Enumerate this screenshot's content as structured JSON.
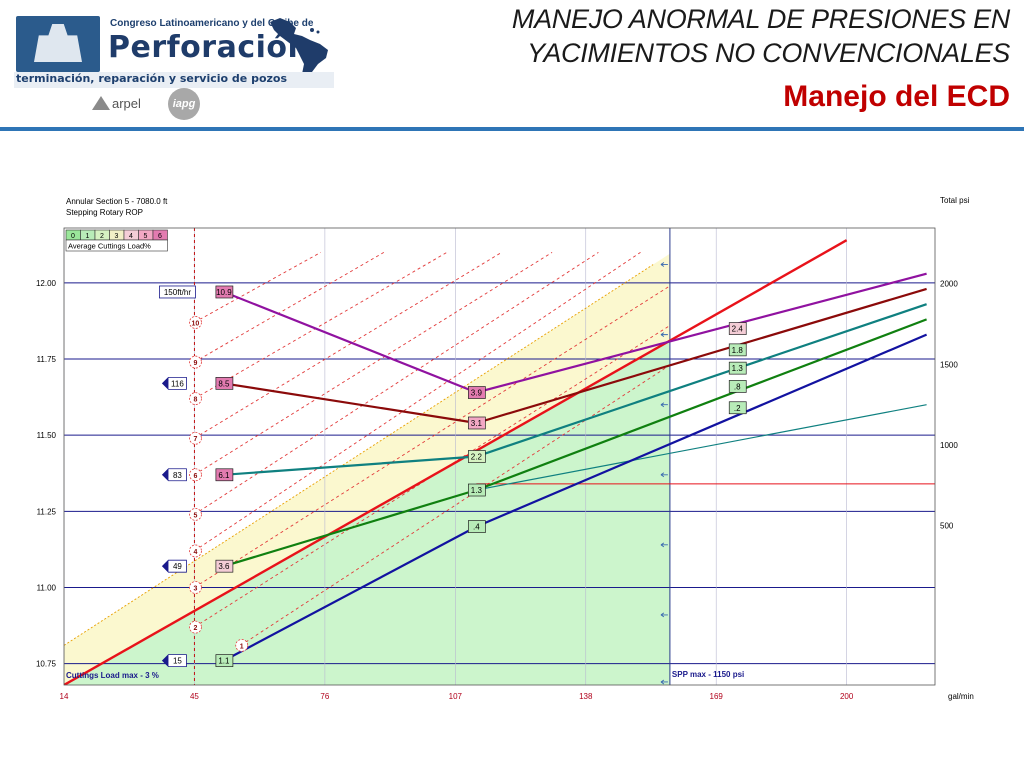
{
  "header": {
    "logo_congreso": "Congreso Latinoamericano y del Caribe de",
    "logo_perforacion": "Perforación",
    "logo_tagline": "terminación, reparación y servicio de pozos",
    "logo_arpel": "arpel",
    "logo_iapg": "iapg",
    "title_line1": "MANEJO ANORMAL DE PRESIONES EN",
    "title_line2": "YACIMIENTOS NO CONVENCIONALES",
    "subtitle": "Manejo del ECD"
  },
  "colors": {
    "brand_blue": "#2e75b6",
    "subtitle_red": "#c00000",
    "grid_navy": "#1a1a8c",
    "safe_zone": "#ccf5cc",
    "warn_zone": "#fbf8cf"
  },
  "chart_data": {
    "type": "line",
    "info_line1": "Annular Section 5 - 7080.0 ft",
    "info_line2": "Stepping Rotary ROP",
    "legend_boxes": [
      "0",
      "1",
      "2",
      "3",
      "4",
      "5",
      "6"
    ],
    "legend_box_colors": [
      "#9ae79a",
      "#b8ecb8",
      "#d6f2c2",
      "#f2efc6",
      "#f4cdd6",
      "#f2a8c4",
      "#e37bb0"
    ],
    "legend_title": "Average Cuttings Load%",
    "xlabel": "gal/min",
    "y2label": "Total psi",
    "x_ticks": [
      "14",
      "45",
      "76",
      "107",
      "138",
      "169",
      "200"
    ],
    "xlim": [
      14,
      221
    ],
    "y_ticks": [
      "12.00",
      "11.75",
      "11.50",
      "11.25",
      "11.00",
      "10.75"
    ],
    "ylim": [
      10.68,
      12.18
    ],
    "y2_ticks": [
      "2000",
      "1500",
      "1000",
      "500"
    ],
    "y2lim": [
      -487,
      2345
    ],
    "spp_max_label": "SPP max - 1150 psi",
    "cuttings_max_label": "Cuttings Load max - 3 %",
    "spp_limit_x": 158,
    "cuttings_limit_x": 45,
    "ecd_series": [
      {
        "color": "#9012a0",
        "points": [
          [
            52,
            11.97
          ],
          [
            112,
            11.64
          ],
          [
            219,
            12.03
          ]
        ],
        "labels": [
          {
            "x": 52,
            "y": 11.97,
            "text": "10.9",
            "fill": "#e37bb0"
          },
          {
            "x": 112,
            "y": 11.64,
            "text": "3.9",
            "fill": "#e37bb0"
          },
          {
            "x": 174,
            "y": 11.85,
            "text": "2.4",
            "fill": "#f4cdd6"
          }
        ]
      },
      {
        "color": "#8b0a0a",
        "points": [
          [
            52,
            11.67
          ],
          [
            112,
            11.54
          ],
          [
            219,
            11.98
          ]
        ],
        "labels": [
          {
            "x": 52,
            "y": 11.67,
            "text": "8.5",
            "fill": "#e37bb0"
          },
          {
            "x": 112,
            "y": 11.54,
            "text": "3.1",
            "fill": "#f2a8c4"
          },
          {
            "x": 174,
            "y": 11.78,
            "text": "1.8",
            "fill": "#b8ecb8"
          }
        ]
      },
      {
        "color": "#0f8080",
        "points": [
          [
            52,
            11.37
          ],
          [
            112,
            11.43
          ],
          [
            219,
            11.93
          ]
        ],
        "labels": [
          {
            "x": 52,
            "y": 11.37,
            "text": "6.1",
            "fill": "#e37bb0"
          },
          {
            "x": 112,
            "y": 11.43,
            "text": "2.2",
            "fill": "#d6f2c2"
          },
          {
            "x": 174,
            "y": 11.72,
            "text": "1.3",
            "fill": "#b8ecb8"
          }
        ]
      },
      {
        "color": "#108010",
        "points": [
          [
            52,
            11.07
          ],
          [
            112,
            11.32
          ],
          [
            219,
            11.88
          ]
        ],
        "labels": [
          {
            "x": 52,
            "y": 11.07,
            "text": "3.6",
            "fill": "#f4cdd6"
          },
          {
            "x": 112,
            "y": 11.32,
            "text": "1.3",
            "fill": "#b8ecb8"
          },
          {
            "x": 174,
            "y": 11.66,
            "text": ".8",
            "fill": "#b8ecb8"
          }
        ]
      },
      {
        "color": "#1212a0",
        "points": [
          [
            52,
            10.76
          ],
          [
            112,
            11.2
          ],
          [
            219,
            11.83
          ]
        ],
        "labels": [
          {
            "x": 52,
            "y": 10.76,
            "text": "1.1",
            "fill": "#b8ecb8"
          },
          {
            "x": 112,
            "y": 11.2,
            "text": ".4",
            "fill": "#b8ecb8"
          },
          {
            "x": 174,
            "y": 11.59,
            "text": ".2",
            "fill": "#b8ecb8"
          }
        ]
      }
    ],
    "rop_labels": [
      {
        "y": 11.97,
        "text": "150ft/hr",
        "flag": false
      },
      {
        "y": 11.67,
        "text": "116",
        "flag": true
      },
      {
        "y": 11.37,
        "text": "83",
        "flag": true
      },
      {
        "y": 11.07,
        "text": "49",
        "flag": true
      },
      {
        "y": 10.76,
        "text": "15",
        "flag": true
      }
    ],
    "red_line": {
      "color": "#e8121a",
      "points": [
        [
          14,
          10.68
        ],
        [
          200,
          12.14
        ]
      ]
    },
    "spp_curve": {
      "color": "#0f8080",
      "points": [
        [
          112,
          11.32
        ],
        [
          219,
          11.6
        ]
      ]
    },
    "spp_limit_line": {
      "color": "#e8121a",
      "y": 11.34,
      "x_from": 112,
      "x_to": 221
    },
    "cuttings_boundary": {
      "color": "#f0cf20",
      "points": [
        [
          14,
          10.81
        ],
        [
          154,
          12.06
        ]
      ]
    },
    "cuttings_contours": [
      {
        "label": "10",
        "points": [
          [
            45,
            11.87
          ],
          [
            75,
            12.1
          ]
        ]
      },
      {
        "label": "9",
        "points": [
          [
            45,
            11.74
          ],
          [
            90,
            12.1
          ]
        ]
      },
      {
        "label": "8",
        "points": [
          [
            45,
            11.62
          ],
          [
            105,
            12.1
          ]
        ]
      },
      {
        "label": "7",
        "points": [
          [
            45,
            11.49
          ],
          [
            118,
            12.1
          ]
        ]
      },
      {
        "label": "6",
        "points": [
          [
            45,
            11.37
          ],
          [
            130,
            12.1
          ]
        ]
      },
      {
        "label": "5",
        "points": [
          [
            45,
            11.24
          ],
          [
            141,
            12.1
          ]
        ]
      },
      {
        "label": "4",
        "points": [
          [
            45,
            11.12
          ],
          [
            151,
            12.1
          ]
        ]
      },
      {
        "label": "3",
        "points": [
          [
            45,
            11.0
          ],
          [
            158,
            11.99
          ]
        ]
      },
      {
        "label": "2",
        "points": [
          [
            45,
            10.87
          ],
          [
            158,
            11.86
          ]
        ]
      },
      {
        "label": "1",
        "points": [
          [
            56,
            10.81
          ],
          [
            158,
            11.73
          ]
        ]
      }
    ],
    "spp_arrows": [
      12.06,
      11.83,
      11.6,
      11.37,
      11.14,
      10.91,
      10.69
    ]
  }
}
